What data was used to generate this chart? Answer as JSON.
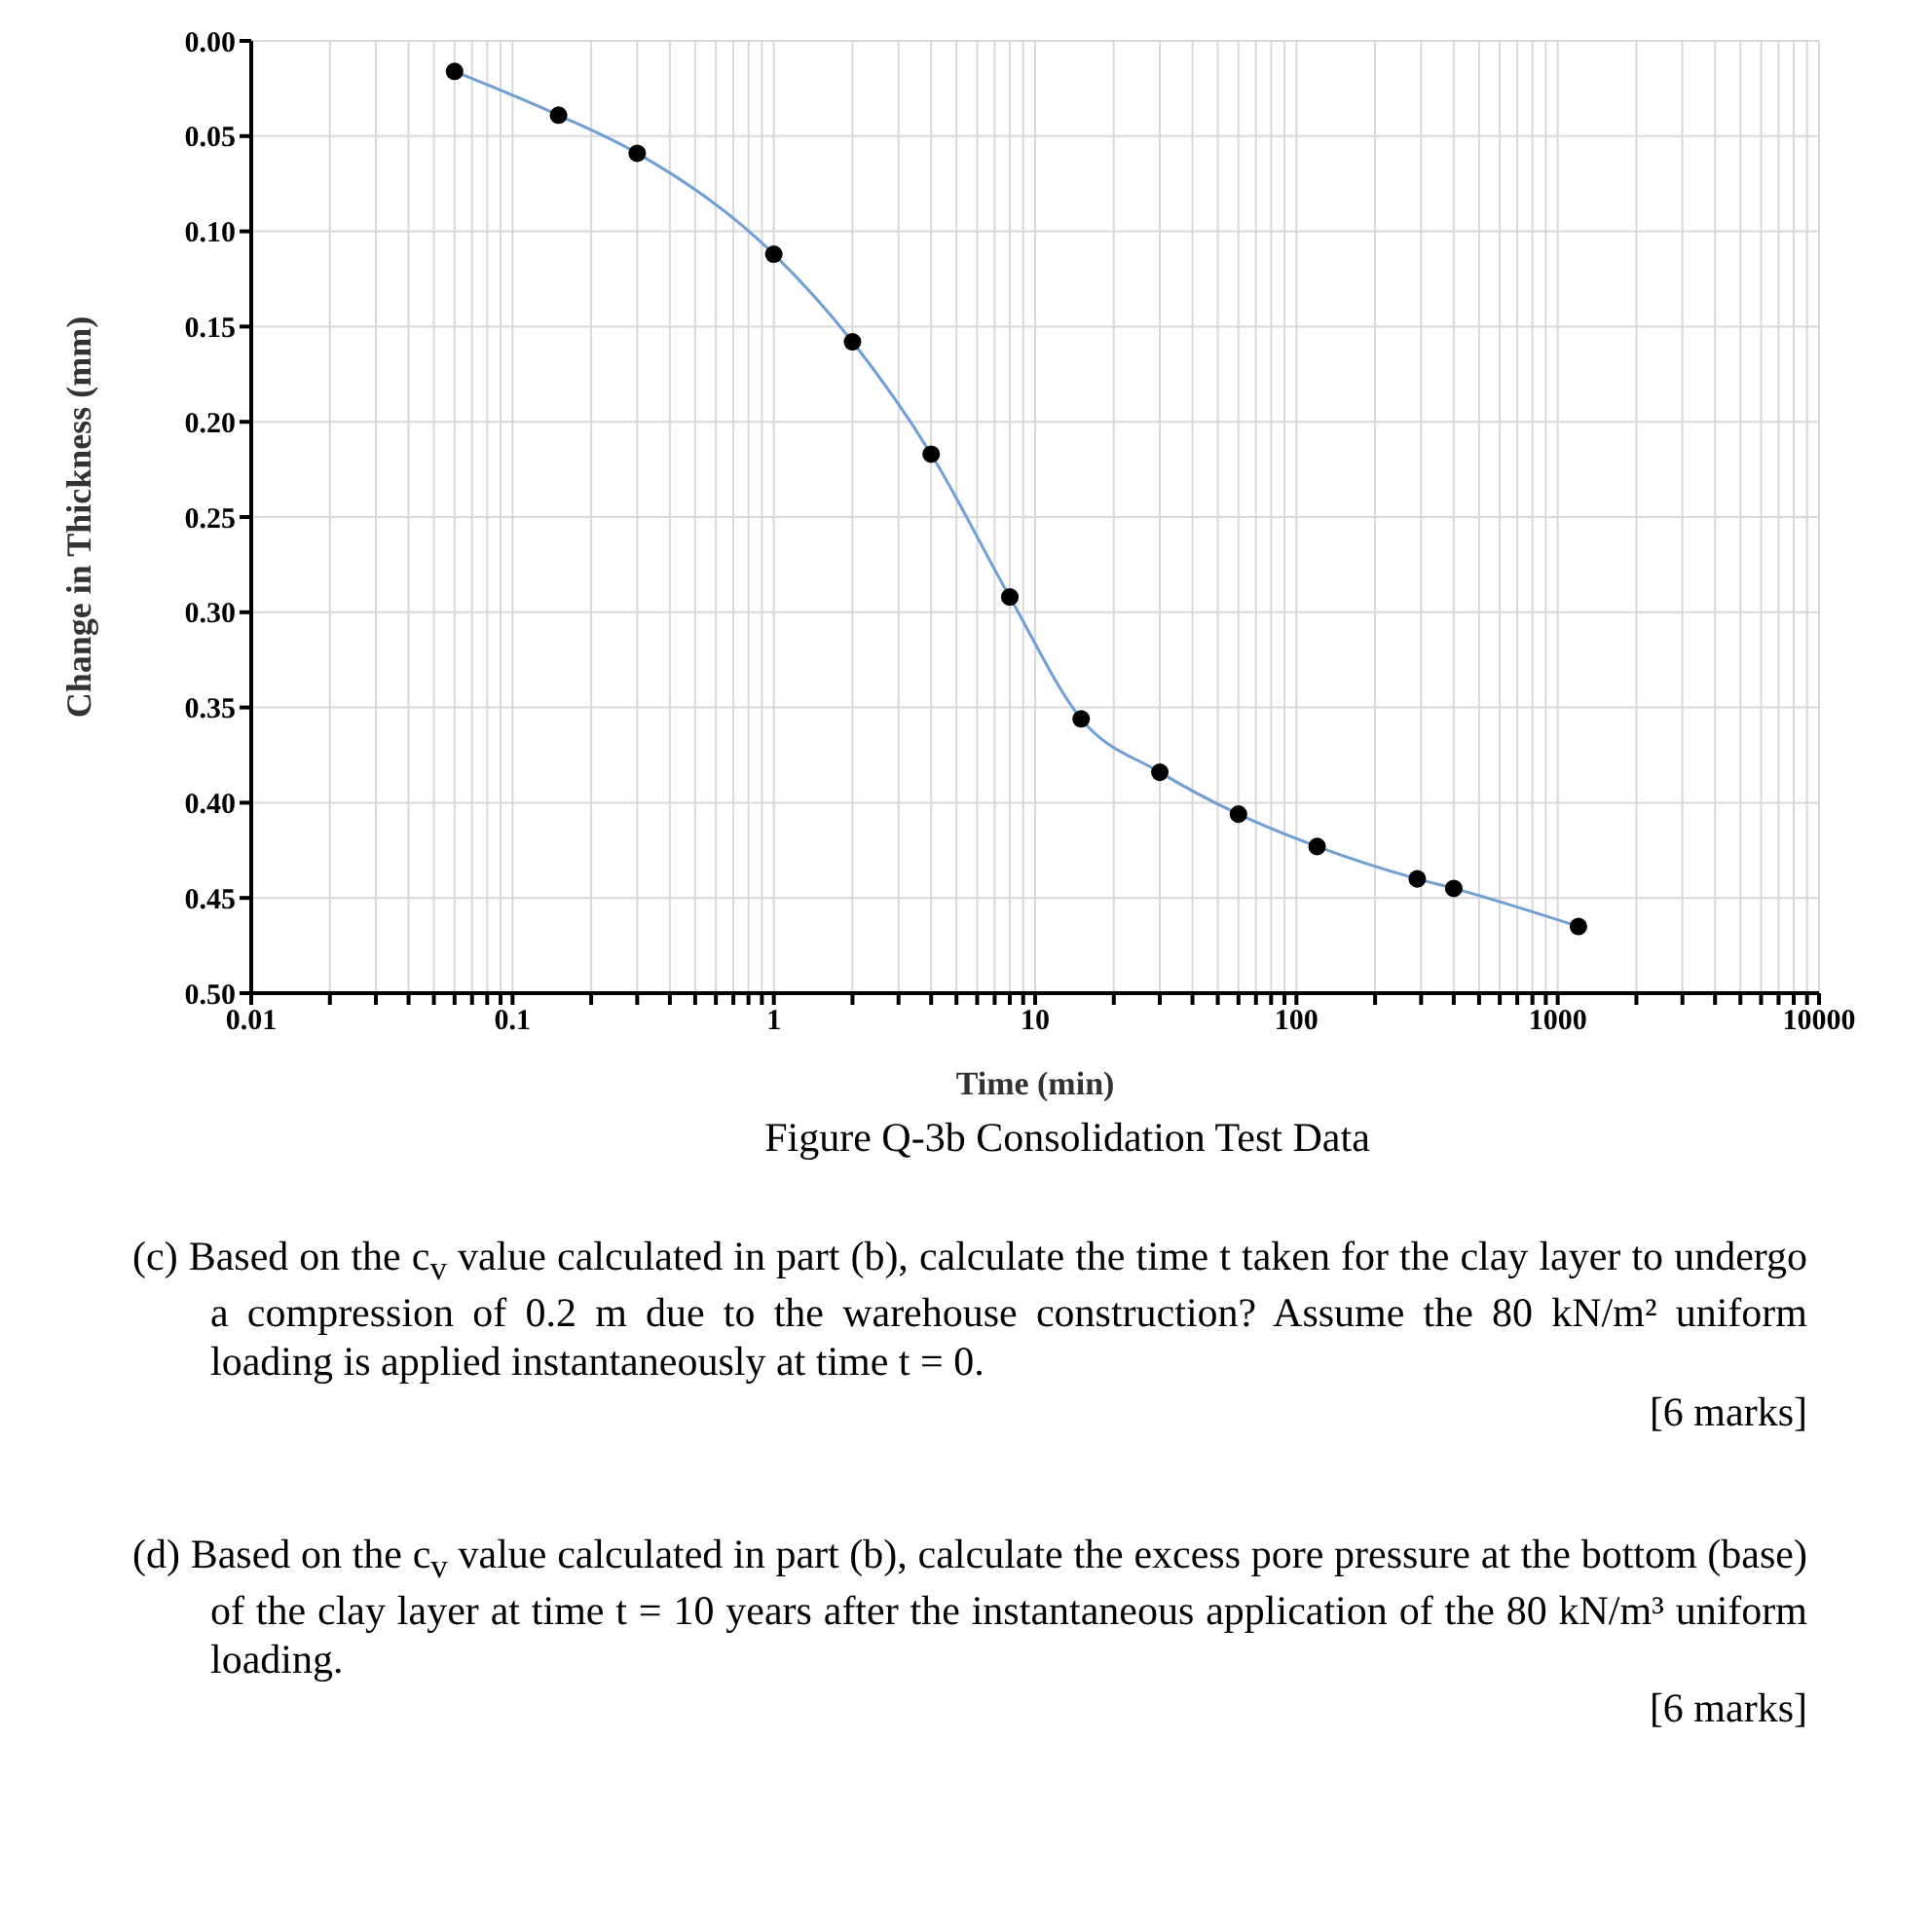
{
  "chart_data": {
    "type": "line",
    "title": "Figure Q-3b   Consolidation Test Data",
    "xlabel": "Time (min)",
    "ylabel": "Change in Thickness (mm)",
    "log": "x",
    "grid": true,
    "x": [
      0.06,
      0.15,
      0.3,
      1,
      2,
      4,
      8,
      15,
      30,
      60,
      120,
      290,
      400,
      1200
    ],
    "series": [
      {
        "type": "line",
        "color": "#6f9fd8",
        "marker": "none",
        "values": [
          0.016,
          0.039,
          0.059,
          0.112,
          0.158,
          0.217,
          0.292,
          0.356,
          0.384,
          0.406,
          0.423,
          0.44,
          0.445,
          0.465
        ]
      },
      {
        "type": "scatter",
        "color": "#000000",
        "marker": "circle",
        "values": [
          0.016,
          0.039,
          0.059,
          0.112,
          0.158,
          0.217,
          0.292,
          0.356,
          0.384,
          0.406,
          0.423,
          0.44,
          0.445,
          0.465
        ]
      }
    ],
    "xlim": [
      0.01,
      10000
    ],
    "xticks": [
      0.01,
      {
        "value": 0.02,
        "label": null
      },
      {
        "value": 0.03,
        "label": null
      },
      {
        "value": 0.04,
        "label": null
      },
      {
        "value": 0.05,
        "label": null
      },
      {
        "value": 0.06,
        "label": null
      },
      {
        "value": 0.07,
        "label": null
      },
      {
        "value": 0.08,
        "label": null
      },
      {
        "value": 0.09,
        "label": null
      },
      0.1,
      {
        "value": 0.2,
        "label": null
      },
      {
        "value": 0.3,
        "label": null
      },
      {
        "value": 0.4,
        "label": null
      },
      {
        "value": 0.5,
        "label": null
      },
      {
        "value": 0.6,
        "label": null
      },
      {
        "value": 0.7,
        "label": null
      },
      {
        "value": 0.8,
        "label": null
      },
      {
        "value": 0.9,
        "label": null
      },
      1,
      {
        "value": 2,
        "label": null
      },
      {
        "value": 3,
        "label": null
      },
      {
        "value": 4,
        "label": null
      },
      {
        "value": 5,
        "label": null
      },
      {
        "value": 6,
        "label": null
      },
      {
        "value": 7,
        "label": null
      },
      {
        "value": 8,
        "label": null
      },
      {
        "value": 9,
        "label": null
      },
      10,
      {
        "value": 20,
        "label": null
      },
      {
        "value": 30,
        "label": null
      },
      {
        "value": 40,
        "label": null
      },
      {
        "value": 50,
        "label": null
      },
      {
        "value": 60,
        "label": null
      },
      {
        "value": 70,
        "label": null
      },
      {
        "value": 80,
        "label": null
      },
      {
        "value": 90,
        "label": null
      },
      100,
      {
        "value": 200,
        "label": null
      },
      {
        "value": 300,
        "label": null
      },
      {
        "value": 400,
        "label": null
      },
      {
        "value": 500,
        "label": null
      },
      {
        "value": 600,
        "label": null
      },
      {
        "value": 700,
        "label": null
      },
      {
        "value": 800,
        "label": null
      },
      {
        "value": 900,
        "label": null
      },
      1000,
      {
        "value": 2000,
        "label": null
      },
      {
        "value": 3000,
        "label": null
      },
      {
        "value": 4000,
        "label": null
      },
      {
        "value": 5000,
        "label": null
      },
      {
        "value": 6000,
        "label": null
      },
      {
        "value": 7000,
        "label": null
      },
      {
        "value": 8000,
        "label": null
      },
      {
        "value": 9000,
        "label": null
      },
      10000
    ],
    "ylim": [
      0.5,
      0
    ],
    "yticks": [
      {
        "value": 0,
        "label": "0.00"
      },
      {
        "value": 0.05,
        "label": "0.05"
      },
      {
        "value": 0.1,
        "label": "0.10"
      },
      {
        "value": 0.15,
        "label": "0.15"
      },
      {
        "value": 0.2,
        "label": "0.20"
      },
      {
        "value": 0.25,
        "label": "0.25"
      },
      {
        "value": 0.3,
        "label": "0.30"
      },
      {
        "value": 0.35,
        "label": "0.35"
      },
      {
        "value": 0.4,
        "label": "0.40"
      },
      {
        "value": 0.45,
        "label": "0.45"
      },
      {
        "value": 0.5,
        "label": "0.50"
      }
    ],
    "annotations": [
      "(c) Based on the c$_{v}$ value calculated in part (b), calculate the time t taken for the clay layer to undergo a compression of 0.2 m due to the warehouse construction? Assume the 80 kN/m² uniform loading is applied instantaneously at time t = 0.",
      "[6 marks]",
      "(d) Based on the c$_{v}$ value calculated in part (b), calculate the excess pore pressure at the bottom (base) of the clay layer at time t = 10 years after the instantaneous application of the 80 kN/m³ uniform loading.",
      "[6 marks]"
    ]
  }
}
